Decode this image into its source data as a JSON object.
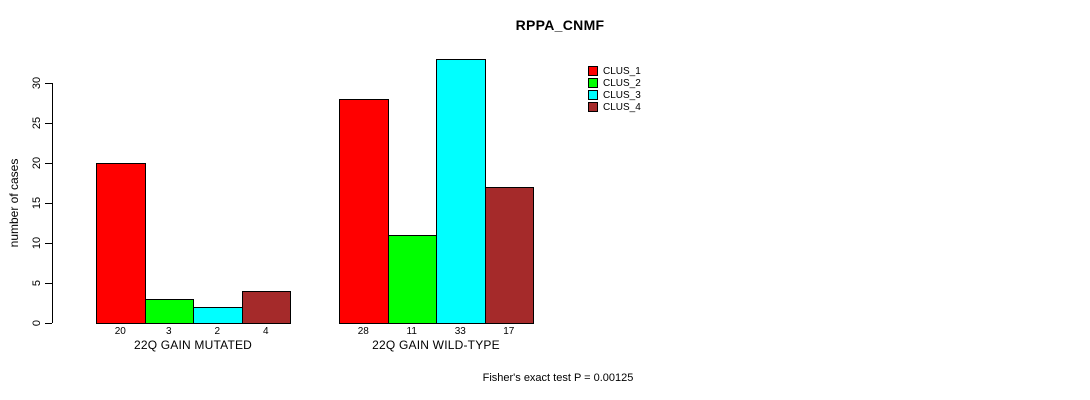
{
  "chart_data": {
    "type": "bar",
    "title": "RPPA_CNMF",
    "ylabel": "number of cases",
    "ylim": [
      0,
      33
    ],
    "yticks": [
      0,
      5,
      10,
      15,
      20,
      25,
      30
    ],
    "grid": false,
    "legend_position": "top-right",
    "series": [
      {
        "name": "CLUS_1",
        "color": "#ff0000"
      },
      {
        "name": "CLUS_2",
        "color": "#00ff00"
      },
      {
        "name": "CLUS_3",
        "color": "#00ffff"
      },
      {
        "name": "CLUS_4",
        "color": "#a52a2a"
      }
    ],
    "groups": [
      {
        "label": "22Q GAIN MUTATED",
        "values": [
          20,
          3,
          2,
          4
        ]
      },
      {
        "label": "22Q GAIN WILD-TYPE",
        "values": [
          28,
          11,
          33,
          17
        ]
      }
    ],
    "bar_value_labels_shown": true,
    "annotation": "Fisher's exact test P = 0.00125"
  }
}
